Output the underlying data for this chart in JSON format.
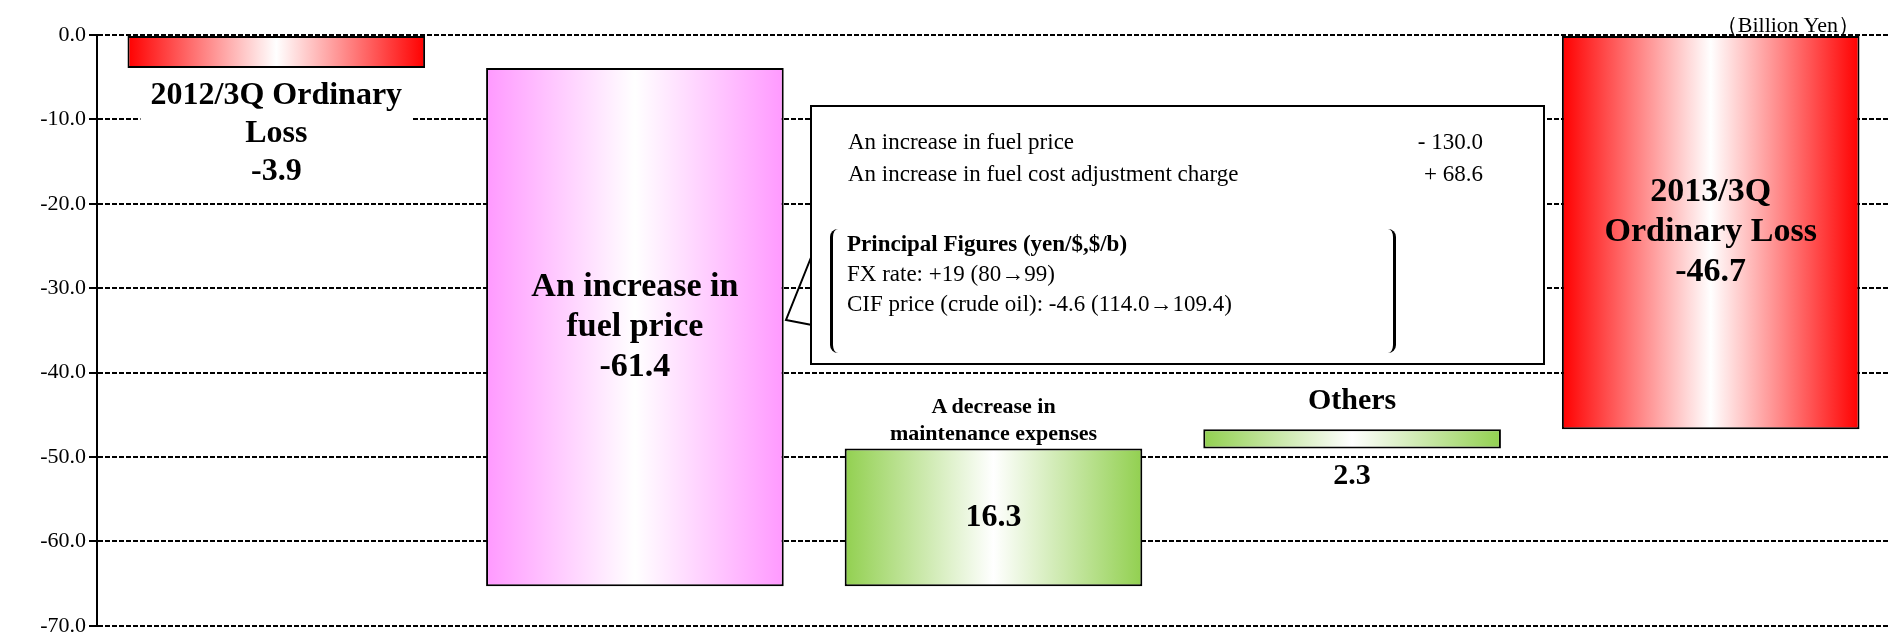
{
  "chart_data": {
    "type": "bar",
    "ylabel": "（Billion Yen）",
    "categories": [
      null,
      null,
      null,
      null,
      null
    ],
    "values": [
      -3.9,
      -61.4,
      16.3,
      2.3,
      -46.7
    ],
    "base": [
      0,
      -3.9,
      -65.3,
      -49.0,
      0
    ],
    "colors": [
      "#ff0000",
      "#ff99ff",
      "#92d050",
      "#92d050",
      "#ff0000"
    ],
    "data_labels": true,
    "ylim": [
      -70,
      0
    ],
    "yticks": [
      {
        "value": 0,
        "label": "0.0"
      },
      {
        "value": -10,
        "label": "-10.0"
      },
      {
        "value": -20,
        "label": "-20.0"
      },
      {
        "value": -30,
        "label": "-30.0"
      },
      {
        "value": -40,
        "label": "-40.0"
      },
      {
        "value": -50,
        "label": "-50.0"
      },
      {
        "value": -60,
        "label": "-60.0"
      },
      {
        "value": -70,
        "label": "-70.0"
      }
    ],
    "grid": "y",
    "tick_labels": "y",
    "annotations": [
      "2012/3Q Ordinary Loss",
      "An increase in fuel price",
      "A decrease in maintenance expenses",
      "Others",
      "2013/3Q Ordinary Loss",
      "An increase in fuel price",
      "‐ 130.0",
      "An increase in fuel cost adjustment charge",
      "+ 68.6",
      "Principal Figures (yen/$,$/b)",
      "FX rate: +19 (80→99)",
      "CIF price (crude oil): -4.6 (114.0→109.4)"
    ]
  }
}
